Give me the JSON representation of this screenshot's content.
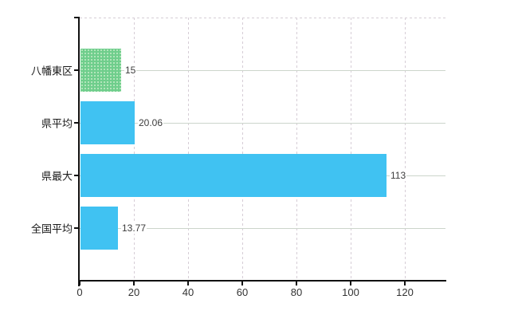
{
  "chart_data": {
    "type": "bar",
    "orientation": "horizontal",
    "title": "",
    "xlabel": "",
    "ylabel": "",
    "categories": [
      "八幡東区",
      "県平均",
      "県最大",
      "全国平均"
    ],
    "values": [
      15,
      20.06,
      113,
      13.77
    ],
    "value_labels": [
      "15",
      "20.06",
      "113",
      "13.77"
    ],
    "bar_colors": [
      "#6fce8c",
      "#40c2f2",
      "#40c2f2",
      "#40c2f2"
    ],
    "x_ticks": [
      0,
      20,
      40,
      60,
      80,
      100,
      120
    ],
    "xlim": [
      0,
      135
    ],
    "grid": true,
    "legend_position": "none"
  },
  "colors": {
    "bar_blue": "#40c2f2",
    "bar_green": "#6fce8c",
    "axis": "#111111",
    "grid_horizontal": "#ccd5cb",
    "grid_vertical": "#d6cdd6",
    "category_text": "#1a1a1a",
    "value_text": "#3d3d3d",
    "tick_text": "#333333",
    "background": "#ffffff"
  }
}
